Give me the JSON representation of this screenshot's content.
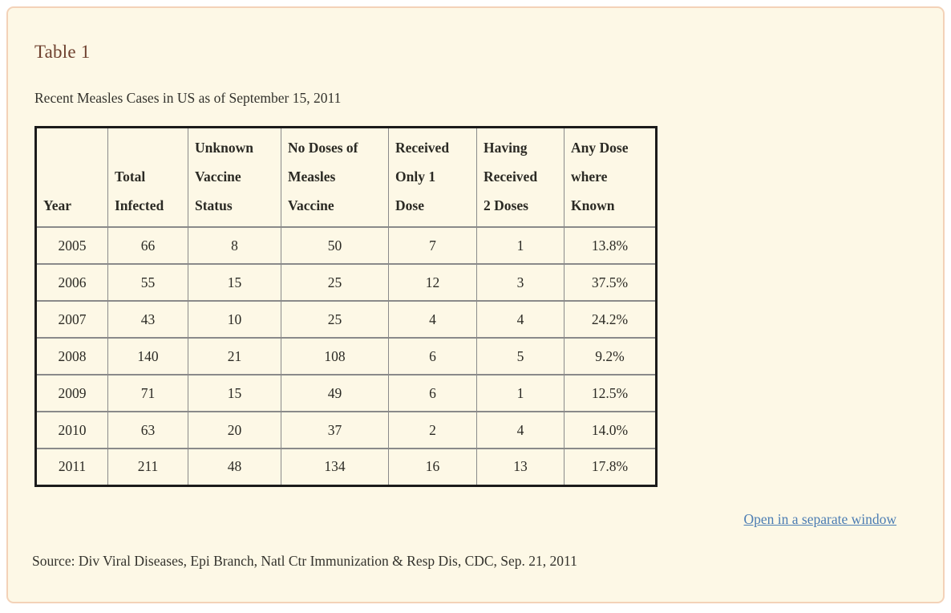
{
  "title": "Table 1",
  "subtitle": "Recent Measles Cases in US as of September 15, 2011",
  "table": {
    "columns": [
      {
        "label": "Year",
        "lines": [
          "Year"
        ]
      },
      {
        "label": "Total Infected",
        "lines": [
          "Total",
          "Infected"
        ]
      },
      {
        "label": "Unknown Vaccine Status",
        "lines": [
          "Unknown",
          "Vaccine",
          "Status"
        ]
      },
      {
        "label": "No Doses of Measles Vaccine",
        "lines": [
          "No Doses of",
          "Measles",
          "Vaccine"
        ]
      },
      {
        "label": "Received Only 1 Dose",
        "lines": [
          "Received",
          "Only 1",
          "Dose"
        ]
      },
      {
        "label": "Having Received 2 Doses",
        "lines": [
          "Having",
          "Received",
          "2 Doses"
        ]
      },
      {
        "label": "Any Dose where Known",
        "lines": [
          "Any Dose",
          "where",
          "Known"
        ]
      }
    ],
    "rows": [
      [
        "2005",
        "66",
        "8",
        "50",
        "7",
        "1",
        "13.8%"
      ],
      [
        "2006",
        "55",
        "15",
        "25",
        "12",
        "3",
        "37.5%"
      ],
      [
        "2007",
        "43",
        "10",
        "25",
        "4",
        "4",
        "24.2%"
      ],
      [
        "2008",
        "140",
        "21",
        "108",
        "6",
        "5",
        "9.2%"
      ],
      [
        "2009",
        "71",
        "15",
        "49",
        "6",
        "1",
        "12.5%"
      ],
      [
        "2010",
        "63",
        "20",
        "37",
        "2",
        "4",
        "14.0%"
      ],
      [
        "2011",
        "211",
        "48",
        "134",
        "16",
        "13",
        "17.8%"
      ]
    ]
  },
  "link": {
    "label": "Open in a separate window"
  },
  "source": "Source: Div Viral Diseases, Epi Branch, Natl Ctr Immunization & Resp Dis, CDC, Sep. 21, 2011",
  "colors": {
    "page_background": "#ffffff",
    "panel_background": "#fdf8e6",
    "panel_border": "#f3d2b8",
    "title_text": "#6e402e",
    "body_text": "#33322c",
    "table_text": "#2b2a24",
    "table_outer_border": "#1b1b1b",
    "table_grid": "#8a8a8a",
    "link_text": "#4c7db3"
  }
}
